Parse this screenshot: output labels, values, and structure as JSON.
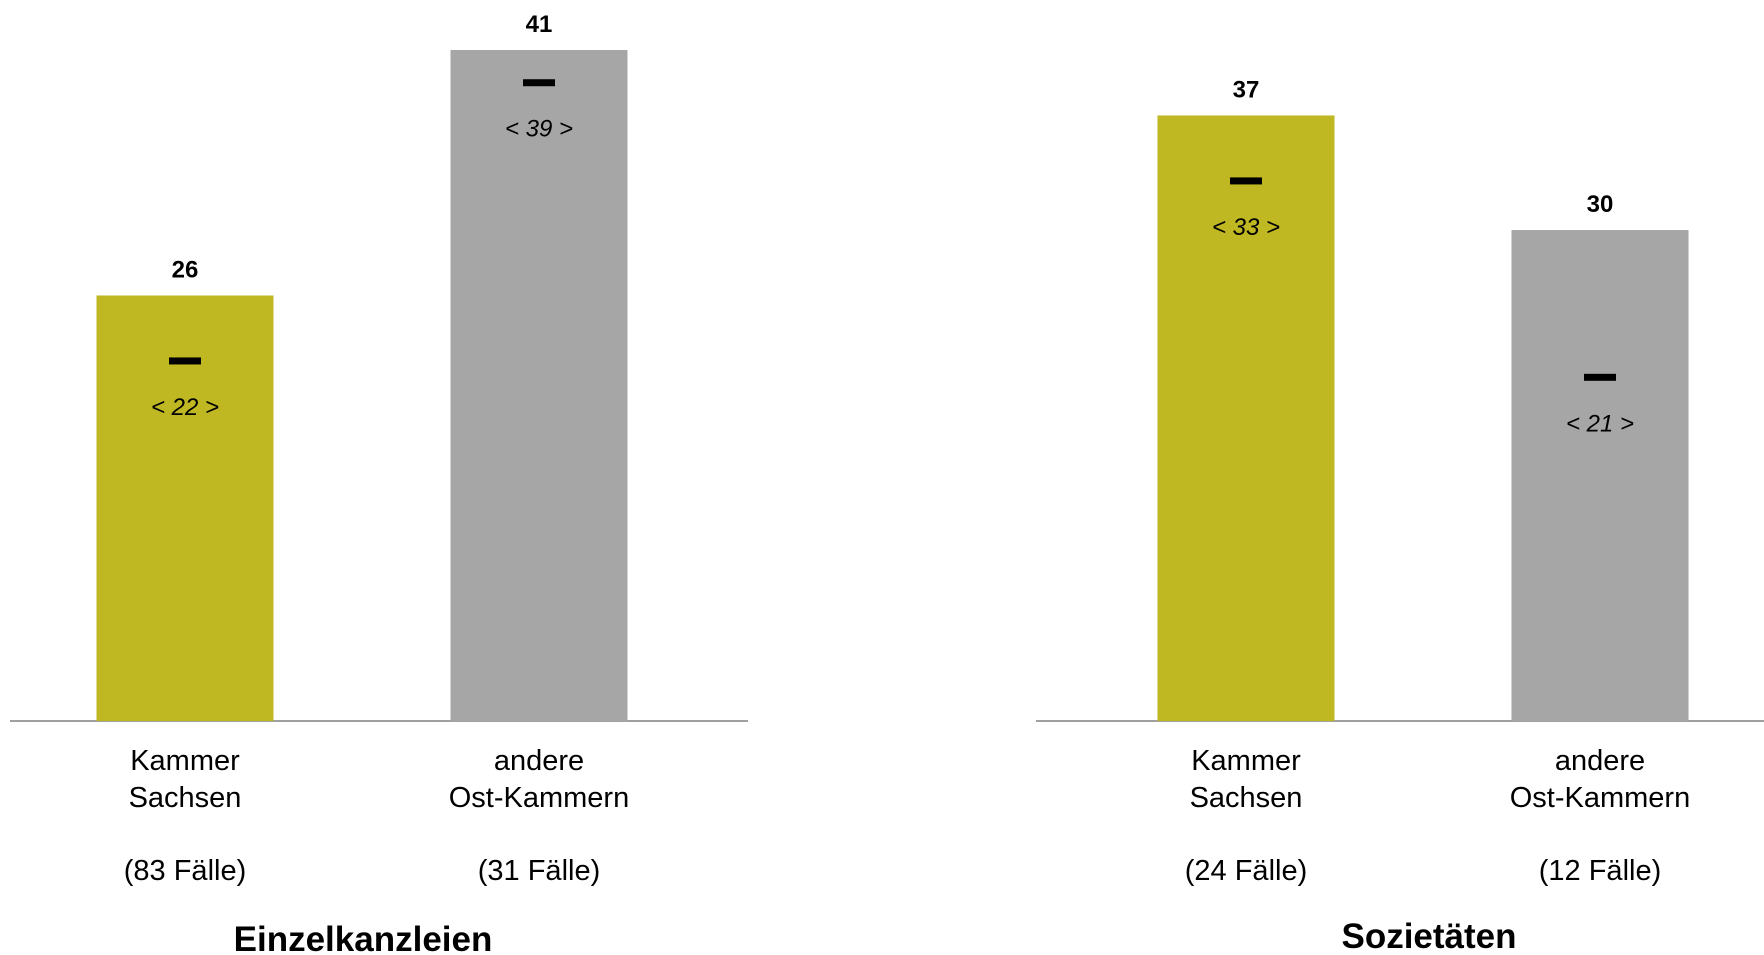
{
  "chart_data": [
    {
      "type": "bar",
      "title": "Einzelkanzleien",
      "categories": [
        {
          "line1": "Kammer",
          "line2": "Sachsen",
          "cases": "(83 Fälle)"
        },
        {
          "line1": "andere",
          "line2": "Ost-Kammern",
          "cases": "(31 Fälle)"
        }
      ],
      "values": [
        26,
        41
      ],
      "medians": [
        22,
        39
      ],
      "median_labels": [
        "< 22 >",
        "< 39 >"
      ],
      "colors": [
        "#bfb822",
        "#a6a6a6"
      ],
      "ylim": [
        0,
        41
      ],
      "grid": false
    },
    {
      "type": "bar",
      "title": "Sozietäten",
      "categories": [
        {
          "line1": "Kammer",
          "line2": "Sachsen",
          "cases": "(24 Fälle)"
        },
        {
          "line1": "andere",
          "line2": "Ost-Kammern",
          "cases": "(12 Fälle)"
        }
      ],
      "values": [
        37,
        30
      ],
      "medians": [
        33,
        21
      ],
      "median_labels": [
        "< 33 >",
        "< 21 >"
      ],
      "colors": [
        "#bfb822",
        "#a6a6a6"
      ],
      "ylim": [
        0,
        41
      ],
      "grid": false
    }
  ]
}
